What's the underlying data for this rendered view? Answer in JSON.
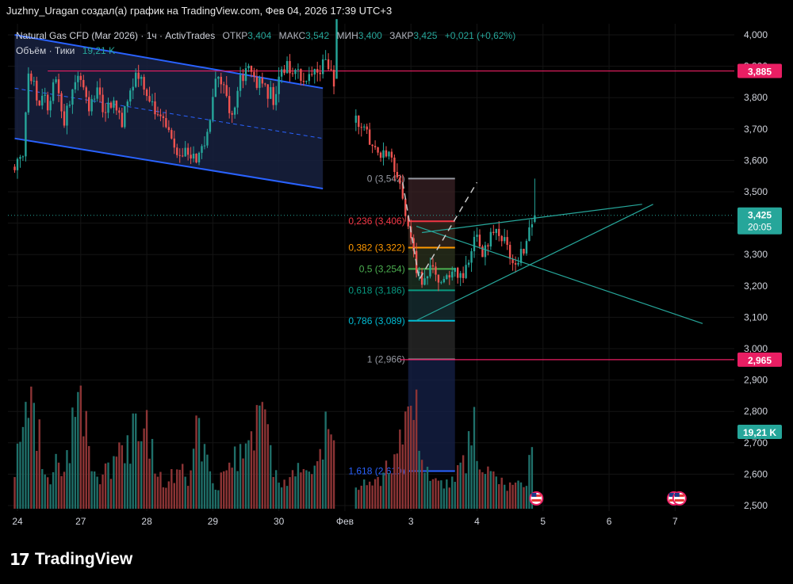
{
  "caption": "Juzhny_Uragan создал(а) график на TradingView.com, Фев 04, 2026 17:39 UTC+3",
  "legend": {
    "symbol": "Natural Gas CFD (Mar 2026) · 1ч · ActivTrades",
    "open_label": "ОТКР",
    "open": "3,404",
    "high_label": "МАКС",
    "high": "3,542",
    "low_label": "МИН",
    "low": "3,400",
    "close_label": "ЗАКР",
    "close": "3,425",
    "change": "+0,021 (+0,62%)",
    "volume_label": "Объём · Тики",
    "volume": "19,21 K"
  },
  "brand": "TradingView",
  "colors": {
    "up": "#26a69a",
    "down": "#ef5350",
    "vol_up": "#1f6f69",
    "vol_down": "#8c3435",
    "channel": "#2962ff",
    "channel_fill": "#17213f",
    "hline": "#e91e63",
    "triangle": "#26a69a",
    "fib_dark": "#2a1a1a",
    "fib_blue": "#16224a"
  },
  "chart_data": {
    "type": "candlestick",
    "ylim": [
      2.5,
      4.05
    ],
    "yticks": [
      2.5,
      2.6,
      2.7,
      2.8,
      2.9,
      3.0,
      3.1,
      3.2,
      3.3,
      3.4,
      3.5,
      3.6,
      3.7,
      3.8,
      3.9,
      4.0
    ],
    "ytick_labels": [
      "2,500",
      "2,600",
      "2,700",
      "2,800",
      "2,900",
      "3,000",
      "3,100",
      "3,200",
      "3,300",
      "3,400",
      "3,500",
      "3,600",
      "3,700",
      "3,800",
      "3,900",
      "4,000"
    ],
    "x_ticks": [
      {
        "label": "24",
        "bar": 1
      },
      {
        "label": "27",
        "bar": 24
      },
      {
        "label": "28",
        "bar": 48
      },
      {
        "label": "29",
        "bar": 72
      },
      {
        "label": "30",
        "bar": 96
      },
      {
        "label": "Фев",
        "bar": 120
      },
      {
        "label": "3",
        "bar": 144
      },
      {
        "label": "4",
        "bar": 168
      },
      {
        "label": "5",
        "bar": 192
      },
      {
        "label": "6",
        "bar": 216
      },
      {
        "label": "7",
        "bar": 240
      }
    ],
    "price_path": [
      [
        0,
        3.58
      ],
      [
        3,
        3.63
      ],
      [
        5,
        3.9
      ],
      [
        8,
        3.8
      ],
      [
        12,
        3.78
      ],
      [
        15,
        3.85
      ],
      [
        18,
        3.72
      ],
      [
        21,
        3.83
      ],
      [
        24,
        3.86
      ],
      [
        27,
        3.78
      ],
      [
        30,
        3.82
      ],
      [
        33,
        3.74
      ],
      [
        36,
        3.8
      ],
      [
        39,
        3.71
      ],
      [
        42,
        3.83
      ],
      [
        45,
        3.87
      ],
      [
        48,
        3.8
      ],
      [
        51,
        3.76
      ],
      [
        54,
        3.72
      ],
      [
        57,
        3.68
      ],
      [
        60,
        3.62
      ],
      [
        63,
        3.64
      ],
      [
        66,
        3.58
      ],
      [
        69,
        3.65
      ],
      [
        71,
        3.74
      ],
      [
        73,
        3.88
      ],
      [
        76,
        3.82
      ],
      [
        79,
        3.74
      ],
      [
        82,
        3.85
      ],
      [
        85,
        3.92
      ],
      [
        88,
        3.85
      ],
      [
        91,
        3.83
      ],
      [
        94,
        3.8
      ],
      [
        97,
        3.88
      ],
      [
        100,
        3.9
      ],
      [
        103,
        3.88
      ],
      [
        106,
        3.86
      ],
      [
        110,
        3.9
      ],
      [
        114,
        3.9
      ],
      [
        116,
        3.86
      ],
      [
        117,
        4.12
      ]
    ],
    "price_path_after_gap": [
      [
        124,
        3.72
      ],
      [
        127,
        3.7
      ],
      [
        130,
        3.66
      ],
      [
        133,
        3.62
      ],
      [
        136,
        3.61
      ],
      [
        139,
        3.55
      ],
      [
        142,
        3.44
      ],
      [
        144,
        3.36
      ],
      [
        146,
        3.26
      ],
      [
        148,
        3.22
      ],
      [
        150,
        3.24
      ],
      [
        152,
        3.27
      ],
      [
        154,
        3.22
      ],
      [
        156,
        3.24
      ],
      [
        158,
        3.21
      ],
      [
        160,
        3.24
      ],
      [
        162,
        3.22
      ],
      [
        164,
        3.26
      ],
      [
        166,
        3.33
      ],
      [
        168,
        3.37
      ],
      [
        170,
        3.31
      ],
      [
        172,
        3.34
      ],
      [
        174,
        3.38
      ],
      [
        176,
        3.36
      ],
      [
        178,
        3.34
      ],
      [
        180,
        3.31
      ],
      [
        182,
        3.28
      ],
      [
        184,
        3.3
      ],
      [
        186,
        3.34
      ],
      [
        188,
        3.4
      ],
      [
        189,
        3.425
      ]
    ],
    "last_bar_spike": {
      "bar": 189,
      "open": 3.404,
      "high": 3.542,
      "low": 3.4,
      "close": 3.425
    },
    "volume_scale_max": 1,
    "volume_profile": [
      [
        0,
        0.35
      ],
      [
        6,
        0.95
      ],
      [
        12,
        0.3
      ],
      [
        18,
        0.5
      ],
      [
        24,
        0.92
      ],
      [
        30,
        0.25
      ],
      [
        36,
        0.4
      ],
      [
        42,
        0.58
      ],
      [
        46,
        0.95
      ],
      [
        52,
        0.25
      ],
      [
        58,
        0.35
      ],
      [
        64,
        0.3
      ],
      [
        66,
        0.75
      ],
      [
        72,
        0.2
      ],
      [
        78,
        0.35
      ],
      [
        84,
        0.65
      ],
      [
        90,
        0.8
      ],
      [
        96,
        0.25
      ],
      [
        102,
        0.35
      ],
      [
        108,
        0.25
      ],
      [
        112,
        0.65
      ],
      [
        116,
        0.86
      ],
      [
        120,
        0.25
      ],
      [
        126,
        0.2
      ],
      [
        132,
        0.25
      ],
      [
        138,
        0.5
      ],
      [
        142,
        0.95
      ],
      [
        145,
        1.0
      ],
      [
        148,
        0.6
      ],
      [
        152,
        0.25
      ],
      [
        156,
        0.2
      ],
      [
        160,
        0.25
      ],
      [
        164,
        0.45
      ],
      [
        166,
        0.9
      ],
      [
        168,
        0.6
      ],
      [
        172,
        0.3
      ],
      [
        178,
        0.2
      ],
      [
        182,
        0.25
      ],
      [
        186,
        0.3
      ],
      [
        189,
        0.7
      ]
    ],
    "horizontal_lines": [
      {
        "price": 3.885,
        "label": "3,885",
        "from_bar": 12
      },
      {
        "price": 2.965,
        "label": "2,965",
        "from_bar": 140
      }
    ],
    "current_price": {
      "label": "3,425",
      "countdown": "20:05",
      "price": 3.425
    },
    "volume_tag": "19,21 K",
    "fibonacci": {
      "from_bar": 143,
      "to_bar": 159,
      "levels": [
        {
          "ratio": "0",
          "price": 3.542,
          "label": "0 (3,542)",
          "color": "#9598a1"
        },
        {
          "ratio": "0.236",
          "price": 3.406,
          "label": "0,236 (3,406)",
          "color": "#f23645"
        },
        {
          "ratio": "0.382",
          "price": 3.322,
          "label": "0,382 (3,322)",
          "color": "#ff9800"
        },
        {
          "ratio": "0.5",
          "price": 3.254,
          "label": "0,5 (3,254)",
          "color": "#4caf50"
        },
        {
          "ratio": "0.618",
          "price": 3.186,
          "label": "0,618 (3,186)",
          "color": "#089981"
        },
        {
          "ratio": "0.786",
          "price": 3.089,
          "label": "0,786 (3,089)",
          "color": "#00bcd4"
        },
        {
          "ratio": "1",
          "price": 2.966,
          "label": "1 (2,966)",
          "color": "#9598a1"
        },
        {
          "ratio": "1.618",
          "price": 2.61,
          "label": "1,618 (2,610)",
          "color": "#2962ff"
        }
      ]
    },
    "channel": {
      "upper": [
        [
          0,
          4.0
        ],
        [
          112,
          3.83
        ]
      ],
      "lower": [
        [
          0,
          3.67
        ],
        [
          112,
          3.51
        ]
      ],
      "mid": [
        [
          0,
          3.83
        ],
        [
          112,
          3.67
        ]
      ],
      "end_bar": 112
    },
    "triangle": {
      "upper": [
        [
          148,
          3.37
        ],
        [
          228,
          3.46
        ]
      ],
      "lower": [
        [
          146,
          3.09
        ],
        [
          232,
          3.46
        ]
      ],
      "down": [
        [
          146,
          3.39
        ],
        [
          250,
          3.08
        ]
      ]
    },
    "arrow_path": [
      [
        141,
        3.53
      ],
      [
        147,
        3.22
      ],
      [
        168,
        3.53
      ]
    ]
  }
}
